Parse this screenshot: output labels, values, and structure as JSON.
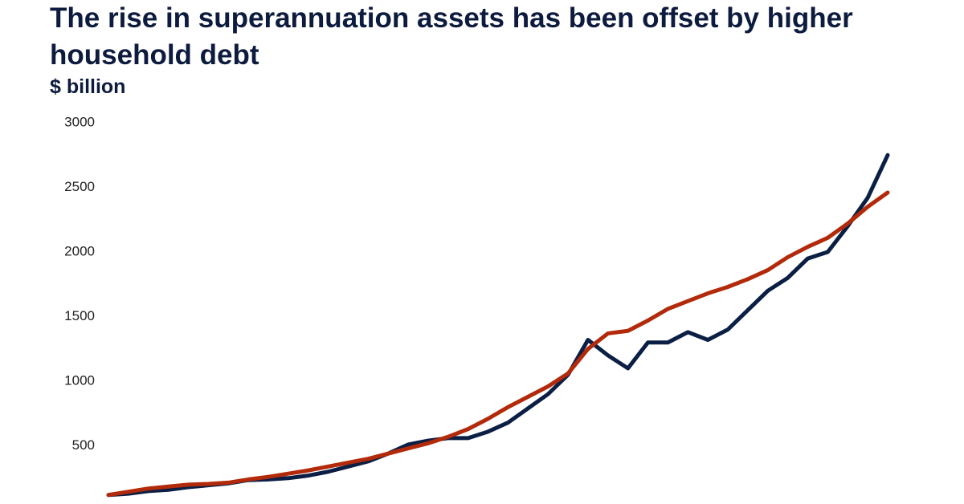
{
  "chart_data": {
    "type": "line",
    "title": "The rise in superannuation assets has been offset by higher household debt",
    "subtitle": "$ billion",
    "series": [
      {
        "color": "#0b1f45",
        "values": [
          120,
          130,
          150,
          160,
          180,
          195,
          210,
          235,
          240,
          250,
          270,
          300,
          340,
          380,
          440,
          510,
          540,
          560,
          560,
          610,
          680,
          790,
          900,
          1050,
          1320,
          1200,
          1100,
          1300,
          1300,
          1380,
          1320,
          1400,
          1550,
          1700,
          1800,
          1950,
          2000,
          2200,
          2420,
          2750
        ]
      },
      {
        "color": "#b22a0a",
        "values": [
          120,
          145,
          170,
          185,
          200,
          205,
          215,
          240,
          260,
          285,
          310,
          340,
          370,
          400,
          440,
          480,
          520,
          570,
          630,
          710,
          800,
          880,
          960,
          1060,
          1250,
          1370,
          1390,
          1470,
          1560,
          1620,
          1680,
          1730,
          1790,
          1860,
          1960,
          2040,
          2110,
          2220,
          2350,
          2460
        ]
      }
    ],
    "ylim": [
      50,
      3000
    ],
    "yticks": [
      500,
      1000,
      1500,
      2000,
      2500,
      3000
    ],
    "grid": false
  }
}
